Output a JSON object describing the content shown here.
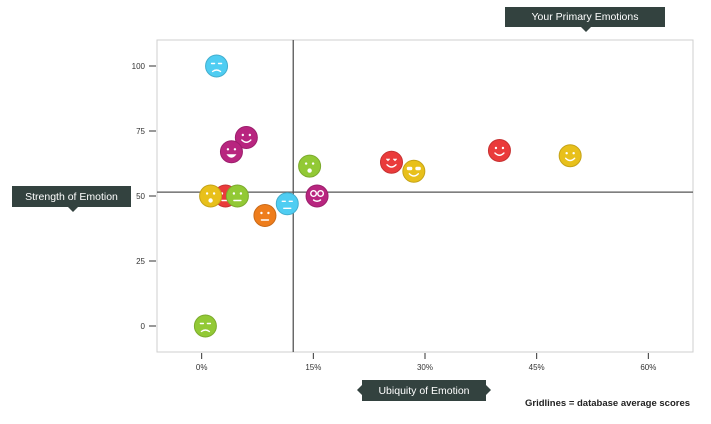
{
  "chart_data": {
    "type": "scatter",
    "title": "Your Primary Emotions",
    "xlabel": "Ubiquity of Emotion",
    "ylabel": "Strength of Emotion",
    "footnote": "Gridlines = database average scores",
    "x_ticks": [
      0,
      15,
      30,
      45,
      60
    ],
    "x_tick_labels": [
      "0%",
      "15%",
      "30%",
      "45%",
      "60%"
    ],
    "y_ticks": [
      0,
      25,
      50,
      75,
      100
    ],
    "y_tick_labels": [
      "0",
      "25",
      "50",
      "75",
      "100"
    ],
    "xlim": [
      -6,
      66
    ],
    "ylim": [
      -10,
      110
    ],
    "avg_x": 12.3,
    "avg_y": 51.5,
    "grid": false,
    "points": [
      {
        "x": 2.0,
        "y": 100.0,
        "color": "#4fcdf2",
        "face": "sad"
      },
      {
        "x": 6.0,
        "y": 72.5,
        "color": "#b8257f",
        "face": "smile"
      },
      {
        "x": 4.0,
        "y": 67.0,
        "color": "#b8257f",
        "face": "laugh"
      },
      {
        "x": 14.5,
        "y": 61.5,
        "color": "#92c935",
        "face": "surprised"
      },
      {
        "x": 25.5,
        "y": 63.0,
        "color": "#ea3b3b",
        "face": "love"
      },
      {
        "x": 28.5,
        "y": 59.5,
        "color": "#e8c01b",
        "face": "cool"
      },
      {
        "x": 40.0,
        "y": 67.5,
        "color": "#ea3b3b",
        "face": "smile"
      },
      {
        "x": 49.5,
        "y": 65.5,
        "color": "#e8c01b",
        "face": "smile"
      },
      {
        "x": 3.2,
        "y": 50.0,
        "color": "#ea3b3b",
        "face": "neutral"
      },
      {
        "x": 1.2,
        "y": 50.0,
        "color": "#e8c01b",
        "face": "surprised"
      },
      {
        "x": 4.8,
        "y": 50.0,
        "color": "#92c935",
        "face": "neutral"
      },
      {
        "x": 8.5,
        "y": 42.5,
        "color": "#ee7d1c",
        "face": "neutral"
      },
      {
        "x": 11.5,
        "y": 47.0,
        "color": "#4fcdf2",
        "face": "sleepy"
      },
      {
        "x": 15.5,
        "y": 50.0,
        "color": "#b8257f",
        "face": "glasses"
      },
      {
        "x": 0.5,
        "y": 0.0,
        "color": "#92c935",
        "face": "sad"
      }
    ]
  }
}
